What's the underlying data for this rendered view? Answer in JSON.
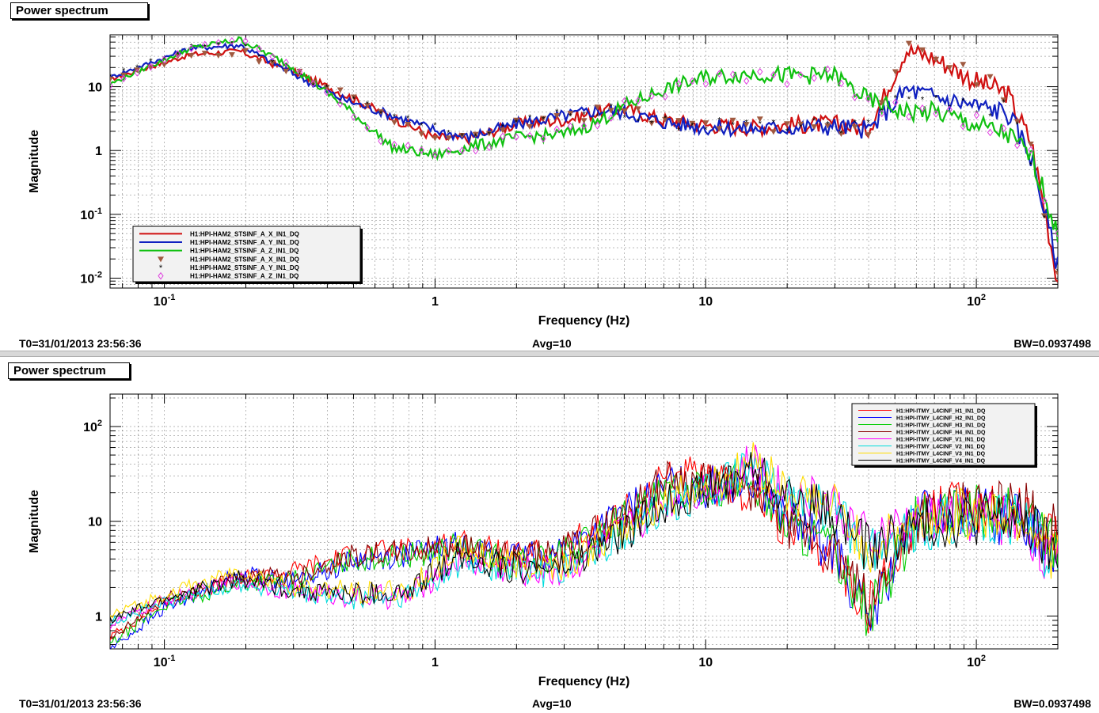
{
  "panels": [
    {
      "title": "Power spectrum",
      "footer": {
        "t0": "T0=31/01/2013 23:56:36",
        "avg": "Avg=10",
        "bw": "BW=0.0937498"
      }
    },
    {
      "title": "Power spectrum",
      "footer": {
        "t0": "T0=31/01/2013 23:56:36",
        "avg": "Avg=10",
        "bw": "BW=0.0937498"
      }
    }
  ],
  "chart_data": [
    {
      "type": "line",
      "xlabel": "Frequency (Hz)",
      "ylabel": "Magnitude",
      "xscale": "log",
      "yscale": "log",
      "xlim": [
        0.063,
        200
      ],
      "ylim": [
        0.007,
        65
      ],
      "x_ticks": [
        {
          "v": 0.1,
          "base": "10",
          "exp": "-1"
        },
        {
          "v": 1,
          "base": "1",
          "exp": ""
        },
        {
          "v": 10,
          "base": "10",
          "exp": ""
        },
        {
          "v": 100,
          "base": "10",
          "exp": "2"
        }
      ],
      "y_ticks": [
        {
          "v": 0.01,
          "base": "10",
          "exp": "-2"
        },
        {
          "v": 0.1,
          "base": "10",
          "exp": "-1"
        },
        {
          "v": 1,
          "base": "1",
          "exp": ""
        },
        {
          "v": 10,
          "base": "10",
          "exp": ""
        }
      ],
      "grid": true,
      "legend_position": "bottom-left",
      "series": [
        {
          "name": "H1:HPI-HAM2_STSINF_A_X_IN1_DQ",
          "color": "#d01010",
          "marker": "none",
          "x": [
            0.063,
            0.125,
            0.19,
            0.3,
            0.45,
            0.7,
            1.0,
            1.3,
            2,
            3,
            4,
            5,
            7,
            10,
            15,
            20,
            30,
            40,
            55,
            70,
            100,
            130,
            160,
            180,
            200
          ],
          "y": [
            13,
            32,
            36,
            17,
            8,
            3.2,
            1.6,
            1.5,
            2.6,
            3,
            4,
            4.5,
            3,
            2.5,
            2.3,
            2.5,
            2.6,
            2.2,
            38,
            28,
            12,
            8,
            1.3,
            0.1,
            0.009
          ]
        },
        {
          "name": "H1:HPI-HAM2_STSINF_A_Y_IN1_DQ",
          "color": "#1020c0",
          "marker": "none",
          "x": [
            0.063,
            0.125,
            0.19,
            0.3,
            0.45,
            0.7,
            1.0,
            1.3,
            2,
            3,
            4,
            5,
            7,
            10,
            15,
            20,
            30,
            40,
            55,
            70,
            100,
            130,
            160,
            180,
            200
          ],
          "y": [
            14,
            40,
            45,
            16,
            6.5,
            3.5,
            2.1,
            1.6,
            2.6,
            3.5,
            4.3,
            4,
            2.8,
            2.3,
            2.2,
            2.3,
            2.4,
            2.1,
            9,
            7,
            5,
            4,
            0.8,
            0.1,
            0.015
          ]
        },
        {
          "name": "H1:HPI-HAM2_STSINF_A_Z_IN1_DQ",
          "color": "#10c010",
          "marker": "none",
          "x": [
            0.063,
            0.125,
            0.19,
            0.3,
            0.45,
            0.7,
            1.0,
            1.3,
            2,
            3,
            4,
            5,
            7,
            10,
            15,
            20,
            30,
            40,
            55,
            70,
            100,
            130,
            160,
            180,
            200
          ],
          "y": [
            11,
            40,
            55,
            20,
            5.5,
            1.1,
            0.85,
            1.1,
            1.6,
            1.8,
            2.8,
            5,
            9,
            14,
            16,
            15,
            15,
            6,
            4,
            4,
            2.5,
            1.8,
            0.8,
            0.2,
            0.04
          ]
        },
        {
          "name": "H1:HPI-HAM2_STSINF_A_X_IN1_DQ",
          "color": "#a05a40",
          "marker": "triangle-down",
          "x": [
            0.063,
            0.125,
            0.19,
            0.3,
            0.45,
            0.7,
            1.0,
            1.3,
            2,
            3,
            4,
            5,
            7,
            10,
            15,
            20,
            30,
            40,
            55,
            70,
            100,
            130,
            160,
            180,
            200
          ],
          "y": [
            13,
            32,
            36,
            17,
            8,
            3.2,
            1.6,
            1.5,
            2.6,
            3,
            4,
            4.5,
            3,
            2.5,
            2.3,
            2.5,
            2.6,
            2.2,
            38,
            28,
            12,
            8,
            1.3,
            0.1,
            0.009
          ]
        },
        {
          "name": "H1:HPI-HAM2_STSINF_A_Y_IN1_DQ",
          "color": "#000000",
          "marker": "star",
          "x": [
            0.063,
            0.125,
            0.19,
            0.3,
            0.45,
            0.7,
            1.0,
            1.3,
            2,
            3,
            4,
            5,
            7,
            10,
            15,
            20,
            30,
            40,
            55,
            70,
            100,
            130,
            160,
            180,
            200
          ],
          "y": [
            14,
            40,
            45,
            16,
            6.5,
            3.5,
            2.1,
            1.6,
            2.6,
            3.5,
            4.3,
            4,
            2.8,
            2.3,
            2.2,
            2.3,
            2.4,
            2.1,
            9,
            7,
            5,
            4,
            0.8,
            0.1,
            0.015
          ]
        },
        {
          "name": "H1:HPI-HAM2_STSINF_A_Z_IN1_DQ",
          "color": "#e040e0",
          "marker": "diamond",
          "x": [
            0.063,
            0.125,
            0.19,
            0.3,
            0.45,
            0.7,
            1.0,
            1.3,
            2,
            3,
            4,
            5,
            7,
            10,
            15,
            20,
            30,
            40,
            55,
            70,
            100,
            130,
            160,
            180,
            200
          ],
          "y": [
            11,
            40,
            55,
            20,
            5.5,
            1.1,
            0.85,
            1.1,
            1.6,
            1.8,
            2.8,
            5,
            9,
            14,
            16,
            15,
            15,
            6,
            4,
            4,
            2.5,
            1.8,
            0.8,
            0.2,
            0.04
          ]
        }
      ]
    },
    {
      "type": "line",
      "xlabel": "Frequency (Hz)",
      "ylabel": "Magnitude",
      "xscale": "log",
      "yscale": "log",
      "xlim": [
        0.063,
        200
      ],
      "ylim": [
        0.45,
        220
      ],
      "x_ticks": [
        {
          "v": 0.1,
          "base": "10",
          "exp": "-1"
        },
        {
          "v": 1,
          "base": "1",
          "exp": ""
        },
        {
          "v": 10,
          "base": "10",
          "exp": ""
        },
        {
          "v": 100,
          "base": "10",
          "exp": "2"
        }
      ],
      "y_ticks": [
        {
          "v": 1,
          "base": "1",
          "exp": ""
        },
        {
          "v": 10,
          "base": "10",
          "exp": ""
        },
        {
          "v": 100,
          "base": "10",
          "exp": "2"
        }
      ],
      "grid": true,
      "legend_position": "top-right",
      "series": [
        {
          "name": "H1:HPI-ITMY_L4CINF_H1_IN1_DQ",
          "color": "#ff0000",
          "x": [
            0.063,
            0.1,
            0.19,
            0.3,
            0.5,
            0.8,
            1.2,
            2,
            3,
            5,
            7.5,
            10,
            15,
            20,
            30,
            40,
            60,
            100,
            150,
            200
          ],
          "y": [
            0.6,
            1.4,
            2.4,
            3,
            4.5,
            5,
            6,
            4,
            5,
            12,
            35,
            25,
            20,
            8,
            4,
            1.2,
            12,
            15,
            14,
            8
          ]
        },
        {
          "name": "H1:HPI-ITMY_L4CINF_H2_IN1_DQ",
          "color": "#0000ff",
          "x": [
            0.063,
            0.1,
            0.19,
            0.3,
            0.5,
            0.8,
            1.2,
            2,
            3,
            5,
            7.5,
            10,
            15,
            20,
            30,
            40,
            60,
            100,
            150,
            200
          ],
          "y": [
            0.45,
            1.2,
            2.8,
            2.3,
            3.8,
            4.5,
            5.5,
            4,
            5,
            12,
            25,
            22,
            30,
            10,
            5,
            0.8,
            12,
            12,
            10,
            5
          ]
        },
        {
          "name": "H1:HPI-ITMY_L4CINF_H3_IN1_DQ",
          "color": "#00cc00",
          "x": [
            0.063,
            0.1,
            0.19,
            0.3,
            0.5,
            0.8,
            1.2,
            2,
            3,
            5,
            7.5,
            10,
            15,
            20,
            30,
            40,
            60,
            100,
            150,
            200
          ],
          "y": [
            0.5,
            1.3,
            2.2,
            2.4,
            4,
            4.3,
            5.5,
            3.5,
            4.5,
            11,
            20,
            24,
            25,
            9,
            5,
            1,
            10,
            12,
            12,
            6
          ]
        },
        {
          "name": "H1:HPI-ITMY_L4CINF_H4_IN1_DQ",
          "color": "#880000",
          "x": [
            0.063,
            0.1,
            0.19,
            0.3,
            0.5,
            0.8,
            1.2,
            2,
            3,
            5,
            7.5,
            10,
            15,
            20,
            30,
            40,
            60,
            100,
            150,
            200
          ],
          "y": [
            0.55,
            1.5,
            2.6,
            2.6,
            4.4,
            4.7,
            5.8,
            3.8,
            4.8,
            12,
            30,
            25,
            22,
            9,
            4.5,
            1.3,
            11,
            14,
            13,
            7
          ]
        },
        {
          "name": "H1:HPI-ITMY_L4CINF_V1_IN1_DQ",
          "color": "#ff00ff",
          "x": [
            0.063,
            0.1,
            0.19,
            0.3,
            0.5,
            0.8,
            1.2,
            2,
            3,
            5,
            7.5,
            10,
            15,
            20,
            30,
            40,
            60,
            100,
            150,
            200
          ],
          "y": [
            0.8,
            1.5,
            2.4,
            1.8,
            1.6,
            1.6,
            4,
            3,
            3,
            8,
            18,
            22,
            40,
            20,
            15,
            6,
            10,
            12,
            10,
            3
          ]
        },
        {
          "name": "H1:HPI-ITMY_L4CINF_V2_IN1_DQ",
          "color": "#00dddd",
          "x": [
            0.063,
            0.1,
            0.19,
            0.3,
            0.5,
            0.8,
            1.2,
            2,
            3,
            5,
            7.5,
            10,
            15,
            20,
            30,
            40,
            60,
            100,
            150,
            200
          ],
          "y": [
            0.85,
            1.4,
            2.2,
            1.7,
            1.5,
            1.6,
            3.5,
            3,
            3,
            7,
            16,
            20,
            35,
            18,
            12,
            5,
            9,
            11,
            10,
            3.5
          ]
        },
        {
          "name": "H1:HPI-ITMY_L4CINF_V3_IN1_DQ",
          "color": "#ffdd00",
          "x": [
            0.063,
            0.1,
            0.19,
            0.3,
            0.5,
            0.8,
            1.2,
            2,
            3,
            5,
            7.5,
            10,
            15,
            20,
            30,
            40,
            60,
            100,
            150,
            200
          ],
          "y": [
            1.0,
            1.7,
            3.0,
            2.0,
            1.8,
            1.9,
            5,
            3.5,
            3.5,
            8,
            18,
            22,
            45,
            20,
            14,
            5,
            10,
            12,
            11,
            4
          ]
        },
        {
          "name": "H1:HPI-ITMY_L4CINF_V4_IN1_DQ",
          "color": "#000000",
          "x": [
            0.063,
            0.1,
            0.19,
            0.3,
            0.5,
            0.8,
            1.2,
            2,
            3,
            5,
            7.5,
            10,
            15,
            20,
            30,
            40,
            60,
            100,
            150,
            200
          ],
          "y": [
            0.9,
            1.5,
            2.5,
            1.9,
            1.7,
            1.7,
            4.5,
            3.2,
            3.2,
            7.5,
            17,
            21,
            38,
            18,
            12,
            5,
            9,
            11,
            10,
            4
          ]
        }
      ]
    }
  ]
}
